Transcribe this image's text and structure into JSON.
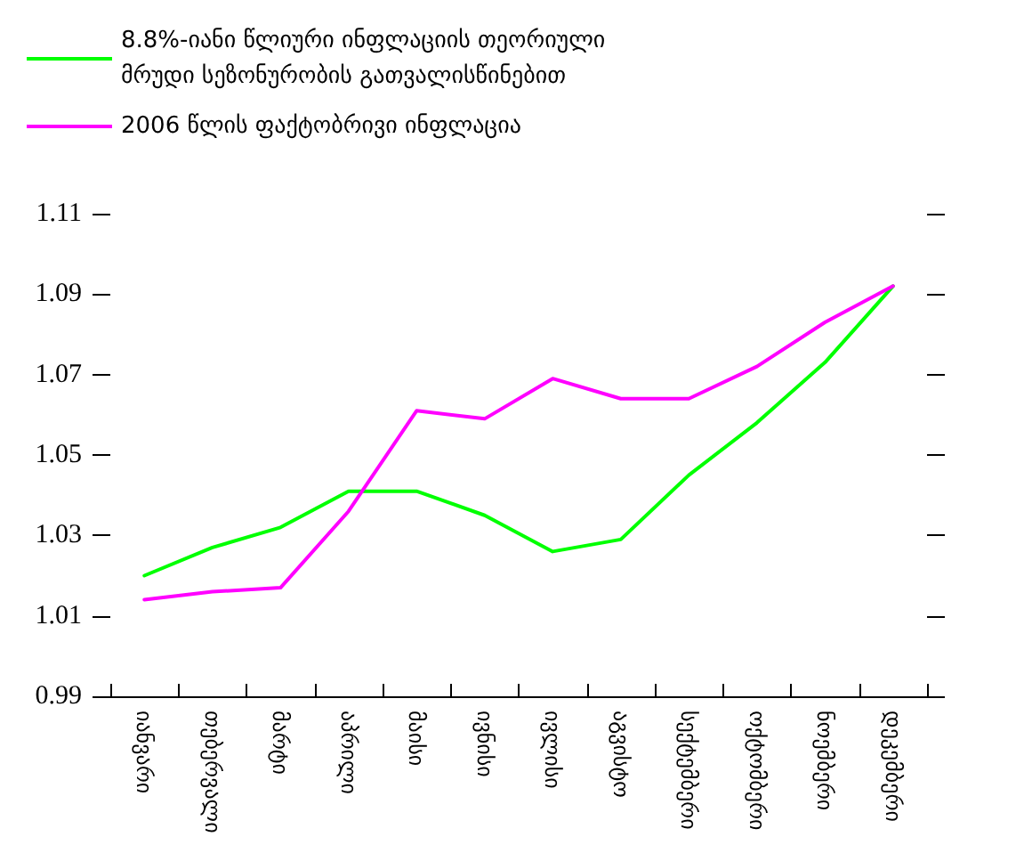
{
  "chart_data": {
    "type": "line",
    "categories": [
      "იანვარი",
      "თებერვალი",
      "მარტი",
      "აპრილი",
      "მაისი",
      "ივნისი",
      "ივლისი",
      "აგვისტო",
      "სექტემბერი",
      "ოქტომბერი",
      "ნოემბერი",
      "დეკემბერი"
    ],
    "series": [
      {
        "name": "8.8%-იანი წლიური ინფლაციის თეორიული მრუდი სეზონურობის გათვალისწინებით",
        "color": "#00ff00",
        "values": [
          1.02,
          1.027,
          1.032,
          1.041,
          1.041,
          1.035,
          1.026,
          1.029,
          1.045,
          1.058,
          1.073,
          1.092
        ]
      },
      {
        "name": "2006 წლის ფაქტობრივი ინფლაცია",
        "color": "#ff00ff",
        "values": [
          1.014,
          1.016,
          1.017,
          1.036,
          1.061,
          1.059,
          1.069,
          1.064,
          1.064,
          1.072,
          1.083,
          1.092
        ]
      }
    ],
    "ylim": [
      0.99,
      1.11
    ],
    "yticks": [
      0.99,
      1.01,
      1.03,
      1.05,
      1.07,
      1.09,
      1.11
    ],
    "grid": false,
    "legend": "top left",
    "marker": "none",
    "line_style": "solid"
  }
}
